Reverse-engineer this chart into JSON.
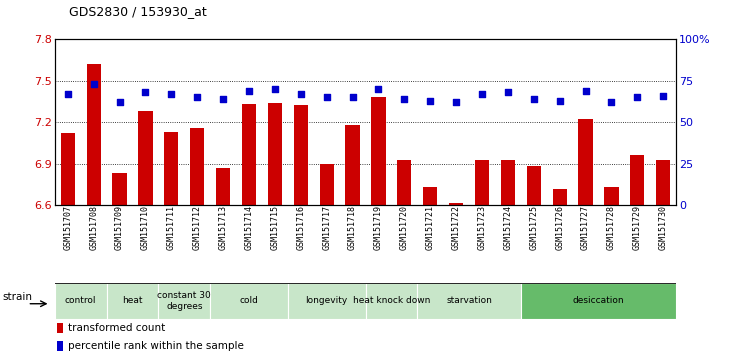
{
  "title": "GDS2830 / 153930_at",
  "samples": [
    "GSM151707",
    "GSM151708",
    "GSM151709",
    "GSM151710",
    "GSM151711",
    "GSM151712",
    "GSM151713",
    "GSM151714",
    "GSM151715",
    "GSM151716",
    "GSM151717",
    "GSM151718",
    "GSM151719",
    "GSM151720",
    "GSM151721",
    "GSM151722",
    "GSM151723",
    "GSM151724",
    "GSM151725",
    "GSM151726",
    "GSM151727",
    "GSM151728",
    "GSM151729",
    "GSM151730"
  ],
  "bar_values": [
    7.12,
    7.62,
    6.83,
    7.28,
    7.13,
    7.16,
    6.87,
    7.33,
    7.34,
    7.32,
    6.9,
    7.18,
    7.38,
    6.93,
    6.73,
    6.62,
    6.93,
    6.93,
    6.88,
    6.72,
    7.22,
    6.73,
    6.96,
    6.93
  ],
  "blue_values": [
    67,
    73,
    62,
    68,
    67,
    65,
    64,
    69,
    70,
    67,
    65,
    65,
    70,
    64,
    63,
    62,
    67,
    68,
    64,
    63,
    69,
    62,
    65,
    66
  ],
  "ylim_left": [
    6.6,
    7.8
  ],
  "ylim_right": [
    0,
    100
  ],
  "yticks_left": [
    6.6,
    6.9,
    7.2,
    7.5,
    7.8
  ],
  "yticks_right": [
    0,
    25,
    50,
    75,
    100
  ],
  "bar_color": "#cc0000",
  "dot_color": "#0000cc",
  "groups": [
    {
      "label": "control",
      "start": 0,
      "end": 2,
      "color": "#c8e6c9"
    },
    {
      "label": "heat",
      "start": 2,
      "end": 4,
      "color": "#c8e6c9"
    },
    {
      "label": "constant 30\ndegrees",
      "start": 4,
      "end": 6,
      "color": "#c8e6c9"
    },
    {
      "label": "cold",
      "start": 6,
      "end": 9,
      "color": "#c8e6c9"
    },
    {
      "label": "longevity",
      "start": 9,
      "end": 12,
      "color": "#c8e6c9"
    },
    {
      "label": "heat knock down",
      "start": 12,
      "end": 14,
      "color": "#c8e6c9"
    },
    {
      "label": "starvation",
      "start": 14,
      "end": 18,
      "color": "#c8e6c9"
    },
    {
      "label": "desiccation",
      "start": 18,
      "end": 24,
      "color": "#66bb6a"
    }
  ],
  "legend_items": [
    {
      "label": "transformed count",
      "color": "#cc0000"
    },
    {
      "label": "percentile rank within the sample",
      "color": "#0000cc"
    }
  ],
  "strain_label": "strain"
}
